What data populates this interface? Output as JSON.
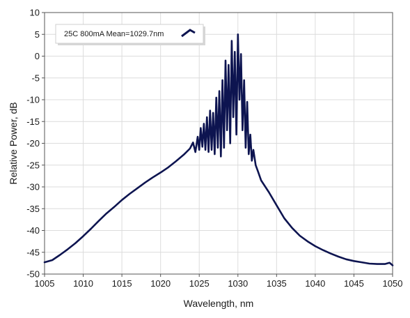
{
  "chart_data": {
    "type": "line",
    "xlabel": "Wavelength, nm",
    "ylabel": "Relative Power, dB",
    "xlim": [
      1005,
      1050
    ],
    "ylim": [
      -50,
      10
    ],
    "xticks": [
      1005,
      1010,
      1015,
      1020,
      1025,
      1030,
      1035,
      1040,
      1045,
      1050
    ],
    "yticks": [
      10,
      5,
      0,
      -5,
      -10,
      -15,
      -20,
      -25,
      -30,
      -35,
      -40,
      -45,
      -50
    ],
    "grid": true,
    "legend": {
      "placement": "top-left",
      "entries": [
        "25C 800mA Mean=1029.7nm"
      ]
    },
    "series": [
      {
        "name": "25C 800mA Mean=1029.7nm",
        "color": "#0d1450",
        "x": [
          1005,
          1006,
          1007,
          1008,
          1009,
          1010,
          1011,
          1012,
          1013,
          1014,
          1015,
          1016,
          1017,
          1018,
          1019,
          1020,
          1021,
          1022,
          1023,
          1023.8,
          1024.2,
          1024.5,
          1024.8,
          1025.0,
          1025.2,
          1025.4,
          1025.6,
          1025.8,
          1026.0,
          1026.2,
          1026.4,
          1026.6,
          1026.8,
          1027.0,
          1027.2,
          1027.4,
          1027.6,
          1027.8,
          1028.0,
          1028.2,
          1028.4,
          1028.6,
          1028.8,
          1029.0,
          1029.2,
          1029.4,
          1029.6,
          1029.8,
          1030.0,
          1030.2,
          1030.4,
          1030.6,
          1030.8,
          1031.0,
          1031.2,
          1031.4,
          1031.6,
          1031.8,
          1032.0,
          1032.3,
          1032.6,
          1033,
          1034,
          1035,
          1036,
          1037,
          1038,
          1039,
          1040,
          1041,
          1042,
          1043,
          1044,
          1045,
          1046,
          1047,
          1048,
          1049,
          1049.6,
          1050
        ],
        "y": [
          -47.3,
          -46.8,
          -45.6,
          -44.3,
          -42.9,
          -41.3,
          -39.6,
          -37.8,
          -36.1,
          -34.6,
          -33.0,
          -31.6,
          -30.3,
          -29.0,
          -27.8,
          -26.7,
          -25.5,
          -24.1,
          -22.6,
          -21.2,
          -19.8,
          -22.0,
          -18.5,
          -21.5,
          -16.5,
          -20.8,
          -15.5,
          -21.5,
          -14.0,
          -22.0,
          -12.5,
          -21.5,
          -13.0,
          -22.5,
          -9.5,
          -21.0,
          -8.0,
          -23.0,
          -5.5,
          -21.0,
          -1.0,
          -17.0,
          -2.0,
          -20.0,
          3.5,
          -14.0,
          1.0,
          -18.0,
          5.0,
          -10.0,
          0.5,
          -17.0,
          -5.5,
          -21.0,
          -10.5,
          -22.5,
          -18.0,
          -24.0,
          -21.5,
          -25.0,
          -26.5,
          -28.5,
          -31.2,
          -34.2,
          -37.2,
          -39.4,
          -41.2,
          -42.5,
          -43.6,
          -44.5,
          -45.3,
          -46.0,
          -46.6,
          -47.0,
          -47.3,
          -47.6,
          -47.7,
          -47.7,
          -47.4,
          -48.0
        ]
      }
    ]
  }
}
